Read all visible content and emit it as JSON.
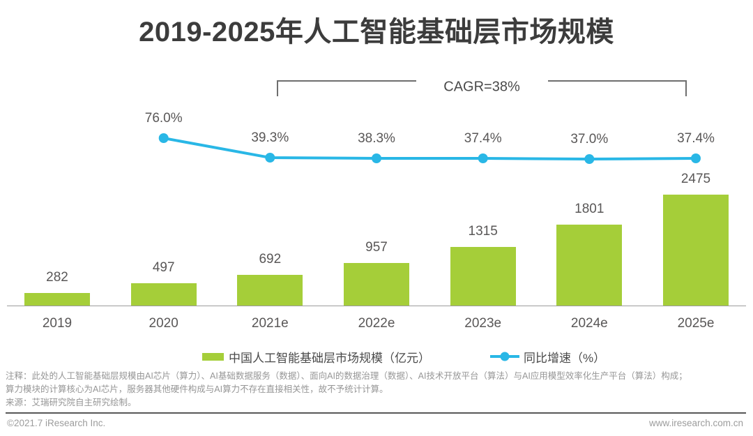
{
  "title": "2019-2025年人工智能基础层市场规模",
  "chart_data": {
    "type": "bar",
    "categories": [
      "2019",
      "2020",
      "2021e",
      "2022e",
      "2023e",
      "2024e",
      "2025e"
    ],
    "series": [
      {
        "name": "中国人工智能基础层市场规模（亿元）",
        "type": "bar",
        "values": [
          282,
          497,
          692,
          957,
          1315,
          1801,
          2475
        ],
        "color": "#a5ce39"
      },
      {
        "name": "同比增速（%）",
        "type": "line",
        "values": [
          null,
          76.0,
          39.3,
          38.3,
          37.4,
          37.0,
          37.4
        ],
        "labels": [
          "",
          "76.0%",
          "39.3%",
          "38.3%",
          "37.4%",
          "37.0%",
          "37.4%"
        ],
        "color": "#29b7e6"
      }
    ],
    "title": "2019-2025年人工智能基础层市场规模",
    "xlabel": "",
    "ylabel": "",
    "grid": false,
    "legend_position": "bottom",
    "annotation": {
      "label": "CAGR=38%",
      "from": "2021e",
      "to": "2025e"
    }
  },
  "legend": {
    "bar_label": "中国人工智能基础层市场规模（亿元）",
    "line_label": "同比增速（%）"
  },
  "annotation_label": "CAGR=38%",
  "notes": [
    "注释：此处的人工智能基础层规模由AI芯片（算力）、AI基础数据服务（数据）、面向AI的数据治理（数据）、AI技术开放平台（算法）与AI应用模型效率化生产平台（算法）构成；",
    "算力模块的计算核心为AI芯片，服务器其他硬件构成与AI算力不存在直接相关性，故不予统计计算。",
    "来源：艾瑞研究院自主研究绘制。"
  ],
  "footer": {
    "left": "©2021.7 iResearch Inc.",
    "right": "www.iresearch.com.cn"
  },
  "colors": {
    "bar": "#a5ce39",
    "line": "#29b7e6",
    "title": "#3c3c3c",
    "label": "#595757"
  }
}
